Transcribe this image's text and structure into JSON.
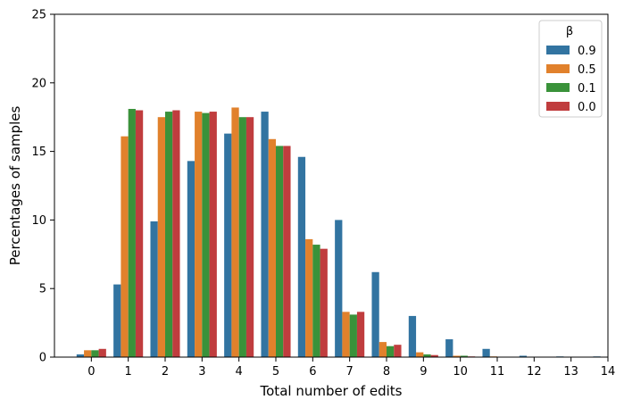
{
  "chart_data": {
    "type": "bar",
    "xlabel": "Total number of edits",
    "ylabel": "Percentages of samples",
    "categories": [
      "0",
      "1",
      "2",
      "3",
      "4",
      "5",
      "6",
      "7",
      "8",
      "9",
      "10",
      "11",
      "12",
      "13",
      "14"
    ],
    "ylim": [
      0,
      25
    ],
    "yticks": [
      0,
      5,
      10,
      15,
      20,
      25
    ],
    "grid": false,
    "legend": {
      "title": "β",
      "placement": "top-right"
    },
    "series": [
      {
        "name": "0.9",
        "color": "#3274a1",
        "values": [
          0.2,
          5.3,
          9.9,
          14.3,
          16.3,
          17.9,
          14.6,
          10.0,
          6.2,
          3.0,
          1.3,
          0.6,
          0.1,
          0.05,
          0.05
        ]
      },
      {
        "name": "0.5",
        "color": "#e1812c",
        "values": [
          0.5,
          16.1,
          17.5,
          17.9,
          18.2,
          15.9,
          8.6,
          3.3,
          1.1,
          0.35,
          0.1,
          0.05,
          0,
          0,
          0
        ]
      },
      {
        "name": "0.1",
        "color": "#3a923a",
        "values": [
          0.5,
          18.1,
          17.9,
          17.8,
          17.5,
          15.4,
          8.2,
          3.1,
          0.8,
          0.2,
          0.1,
          0.02,
          0,
          0,
          0
        ]
      },
      {
        "name": "0.0",
        "color": "#c03d3e",
        "values": [
          0.6,
          18.0,
          18.0,
          17.9,
          17.5,
          15.4,
          7.9,
          3.3,
          0.9,
          0.15,
          0.05,
          0.02,
          0,
          0,
          0
        ]
      }
    ]
  }
}
